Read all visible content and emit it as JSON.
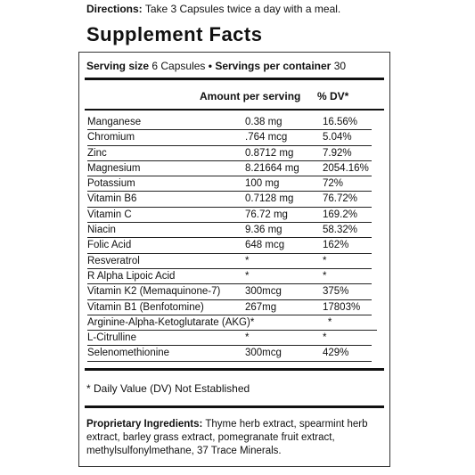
{
  "directions": {
    "label": "Directions:",
    "text": "Take 3 Capsules twice a day with a meal."
  },
  "title": "Supplement Facts",
  "serving": {
    "size_label": "Serving size",
    "size_value": "6 Capsules",
    "separator": "•",
    "servings_label": "Servings per container",
    "servings_value": "30"
  },
  "table": {
    "header": [
      "Amount per serving",
      "% DV*"
    ],
    "rows": [
      [
        "Manganese",
        "0.38 mg",
        "16.56%"
      ],
      [
        "Chromium",
        ".764 mcg",
        "5.04%"
      ],
      [
        "Zinc",
        "0.8712 mg",
        "7.92%"
      ],
      [
        "Magnesium",
        "8.21664 mg",
        "2054.16%"
      ],
      [
        "Potassium",
        "100 mg",
        "72%"
      ],
      [
        "Vitamin B6",
        "0.7128 mg",
        "76.72%"
      ],
      [
        "Vitamin C",
        "76.72 mg",
        "169.2%"
      ],
      [
        "Niacin",
        "9.36 mg",
        "58.32%"
      ],
      [
        "Folic Acid",
        "648 mcg",
        "162%"
      ],
      [
        "Resveratrol",
        "*",
        "*"
      ],
      [
        "R Alpha Lipoic Acid",
        "*",
        "*"
      ],
      [
        "Vitamin K2 (Memaquinone-7)",
        "300mcg",
        "375%"
      ],
      [
        "Vitamin B1 (Benfotomine)",
        "267mg",
        "17803%"
      ],
      [
        "Arginine-Alpha-Ketoglutarate (AKG)",
        "*",
        "*"
      ],
      [
        "L-Citrulline",
        "*",
        "*"
      ],
      [
        "Selenomethionine",
        "300mcg",
        "429%"
      ]
    ]
  },
  "footnote": "* Daily Value (DV) Not Established",
  "proprietary": {
    "label": "Proprietary Ingredients:",
    "text": "Thyme herb extract, spearmint herb extract, barley grass extract, pomegranate fruit extract, methylsulfonylmethane, 37 Trace Minerals."
  }
}
